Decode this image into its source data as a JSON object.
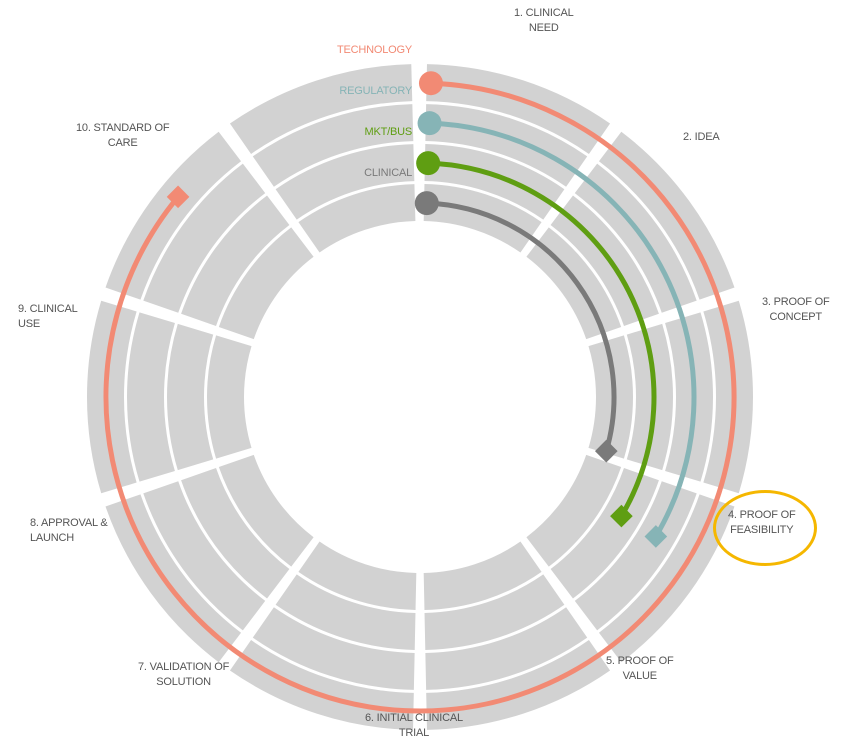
{
  "colors": {
    "segment_fill": "#d2d2d2",
    "gap": "#ffffff",
    "technology": "#f28a74",
    "regulatory": "#86b4b6",
    "mkt_bus": "#5f9e12",
    "clinical": "#7a7a7a",
    "highlight": "#f5b700",
    "stage_text": "#555555"
  },
  "tracks": [
    {
      "id": "technology",
      "label": "TECHNOLOGY",
      "color": "#f28a74",
      "start_stage": 1,
      "end_stage": 9
    },
    {
      "id": "regulatory",
      "label": "REGULATORY",
      "color": "#86b4b6",
      "start_stage": 1,
      "end_stage": 4
    },
    {
      "id": "mkt_bus",
      "label": "MKT/BUS",
      "color": "#5f9e12",
      "start_stage": 1,
      "end_stage": 4
    },
    {
      "id": "clinical",
      "label": "CLINICAL",
      "color": "#7a7a7a",
      "start_stage": 1,
      "end_stage": 3
    }
  ],
  "stages": [
    {
      "num": 1,
      "label": "1. CLINICAL\nNEED"
    },
    {
      "num": 2,
      "label": "2. IDEA"
    },
    {
      "num": 3,
      "label": "3. PROOF OF\nCONCEPT"
    },
    {
      "num": 4,
      "label": "4. PROOF OF\nFEASIBILITY",
      "highlighted": true
    },
    {
      "num": 5,
      "label": "5. PROOF OF\nVALUE"
    },
    {
      "num": 6,
      "label": "6. INITIAL CLINICAL\nTRIAL"
    },
    {
      "num": 7,
      "label": "7. VALIDATION OF\nSOLUTION"
    },
    {
      "num": 8,
      "label": "8. APPROVAL &\nLAUNCH"
    },
    {
      "num": 9,
      "label": "9. CLINICAL\nUSE"
    },
    {
      "num": 10,
      "label": "10. STANDARD OF\nCARE"
    }
  ]
}
